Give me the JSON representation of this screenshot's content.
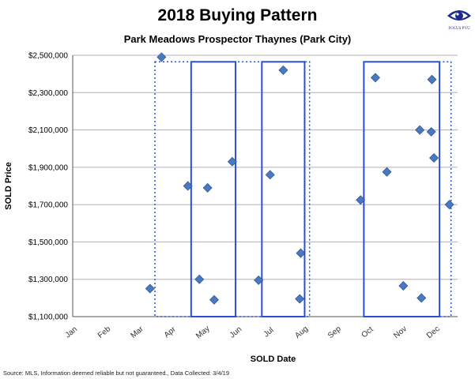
{
  "title": "2018 Buying Pattern",
  "subtitle": "Park Meadows Prospector Thaynes (Park City)",
  "source": "Source: MLS, Information deemed reliable but not guaranteed., Data Collected: 3/4/19",
  "logo": {
    "icon": "eye-icon",
    "text": "FOCUS PVU"
  },
  "colors": {
    "point": "#4a78c2",
    "box": "#2c4fd6",
    "grid": "#b0b0b0"
  },
  "chart_data": {
    "type": "scatter",
    "title": "2018 Buying Pattern",
    "subtitle": "Park Meadows Prospector Thaynes (Park City)",
    "xlabel": "SOLD Date",
    "ylabel": "SOLD Price",
    "xlim": [
      0,
      11.7
    ],
    "ylim": [
      1100000,
      2500000
    ],
    "x_ticks": [
      0,
      1,
      2,
      3,
      4,
      5,
      6,
      7,
      8,
      9,
      10,
      11
    ],
    "x_tick_labels": [
      "Jan",
      "Feb",
      "Mar",
      "Apr",
      "May",
      "Jun",
      "Jul",
      "Aug",
      "Sep",
      "Oct",
      "Nov",
      "Dec"
    ],
    "y_ticks": [
      1100000,
      1300000,
      1500000,
      1700000,
      1900000,
      2100000,
      2300000,
      2500000
    ],
    "y_tick_labels": [
      "$1,100,000",
      "$1,300,000",
      "$1,500,000",
      "$1,700,000",
      "$1,900,000",
      "$2,100,000",
      "$2,300,000",
      "$2,500,000"
    ],
    "grid": true,
    "points": [
      {
        "x": 2.35,
        "y": 1250000
      },
      {
        "x": 2.7,
        "y": 2490000
      },
      {
        "x": 3.5,
        "y": 1800000
      },
      {
        "x": 3.85,
        "y": 1300000
      },
      {
        "x": 4.1,
        "y": 1790000
      },
      {
        "x": 4.3,
        "y": 1190000
      },
      {
        "x": 4.85,
        "y": 1930000
      },
      {
        "x": 5.65,
        "y": 1295000
      },
      {
        "x": 6.0,
        "y": 1860000
      },
      {
        "x": 6.4,
        "y": 2420000
      },
      {
        "x": 6.9,
        "y": 1195000
      },
      {
        "x": 6.93,
        "y": 1440000
      },
      {
        "x": 8.75,
        "y": 1725000
      },
      {
        "x": 9.2,
        "y": 2380000
      },
      {
        "x": 9.55,
        "y": 1875000
      },
      {
        "x": 10.05,
        "y": 1265000
      },
      {
        "x": 10.6,
        "y": 1200000
      },
      {
        "x": 10.55,
        "y": 2100000
      },
      {
        "x": 10.92,
        "y": 2370000
      },
      {
        "x": 10.9,
        "y": 2090000
      },
      {
        "x": 10.98,
        "y": 1950000
      },
      {
        "x": 11.45,
        "y": 1700000
      }
    ],
    "solid_boxes": [
      {
        "x0": 3.6,
        "x1": 4.95,
        "y0": 1100000,
        "y1": 2465000
      },
      {
        "x0": 5.75,
        "x1": 7.05,
        "y0": 1100000,
        "y1": 2465000
      },
      {
        "x0": 8.85,
        "x1": 11.15,
        "y0": 1100000,
        "y1": 2465000
      }
    ],
    "dotted_boxes": [
      {
        "x0": 2.5,
        "x1": 7.2,
        "y0": 1100000,
        "y1": 2465000
      },
      {
        "x0": 8.85,
        "x1": 11.5,
        "y0": 1100000,
        "y1": 2465000
      }
    ]
  }
}
